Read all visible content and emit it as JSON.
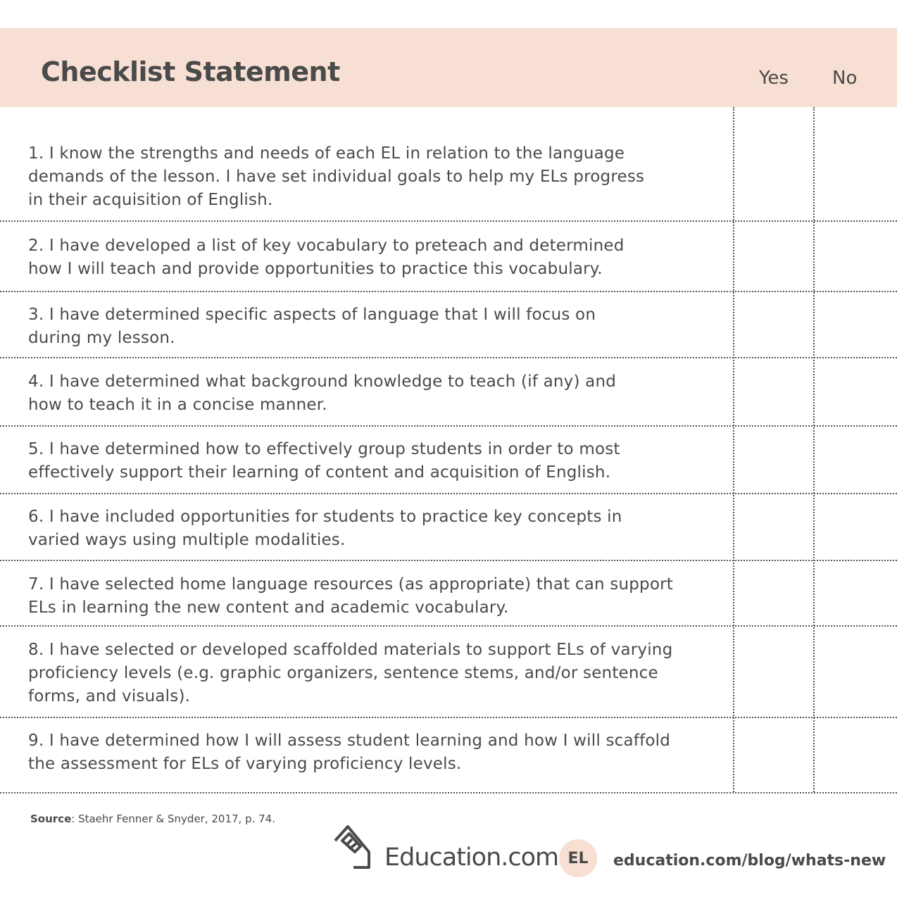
{
  "header": {
    "title": "Checklist Statement",
    "yes_label": "Yes",
    "no_label": "No",
    "background": "#f7dfd4"
  },
  "items": [
    {
      "lines": [
        "1. I know the strengths and needs of each EL in relation to the language",
        "demands of the lesson. I have set individual goals to help my ELs progress",
        "in their acquisition of English."
      ]
    },
    {
      "lines": [
        "2. I have developed a list of key vocabulary to preteach and determined",
        "how I will teach and provide opportunities to practice this vocabulary."
      ]
    },
    {
      "lines": [
        "3. I have determined specific aspects of language that I will focus on",
        "during my lesson."
      ]
    },
    {
      "lines": [
        "4. I have determined what background knowledge to teach (if any) and",
        "how to teach it in a concise manner."
      ]
    },
    {
      "lines": [
        "5. I have determined how to effectively group students in order to most",
        "effectively support their learning of content and acquisition of English."
      ]
    },
    {
      "lines": [
        "6. I have included opportunities for students to practice key concepts in",
        "varied ways using multiple modalities."
      ]
    },
    {
      "lines": [
        "7. I have selected home language resources (as appropriate) that can support",
        "ELs in learning the new content and academic vocabulary."
      ]
    },
    {
      "lines": [
        "8. I have selected or developed scaffolded materials to support ELs of varying",
        "proficiency levels (e.g. graphic organizers, sentence stems, and/or sentence",
        "forms, and visuals)."
      ]
    },
    {
      "lines": [
        "9. I have determined how I will assess student learning and how I will scaffold",
        "the assessment for ELs of varying proficiency levels."
      ]
    }
  ],
  "footer": {
    "source_label": "Source",
    "source_text": ": Staehr Fenner & Snyder, 2017, p. 74.",
    "brand": "Education.com",
    "badge": "EL",
    "url": "education.com/blog/whats-new"
  }
}
